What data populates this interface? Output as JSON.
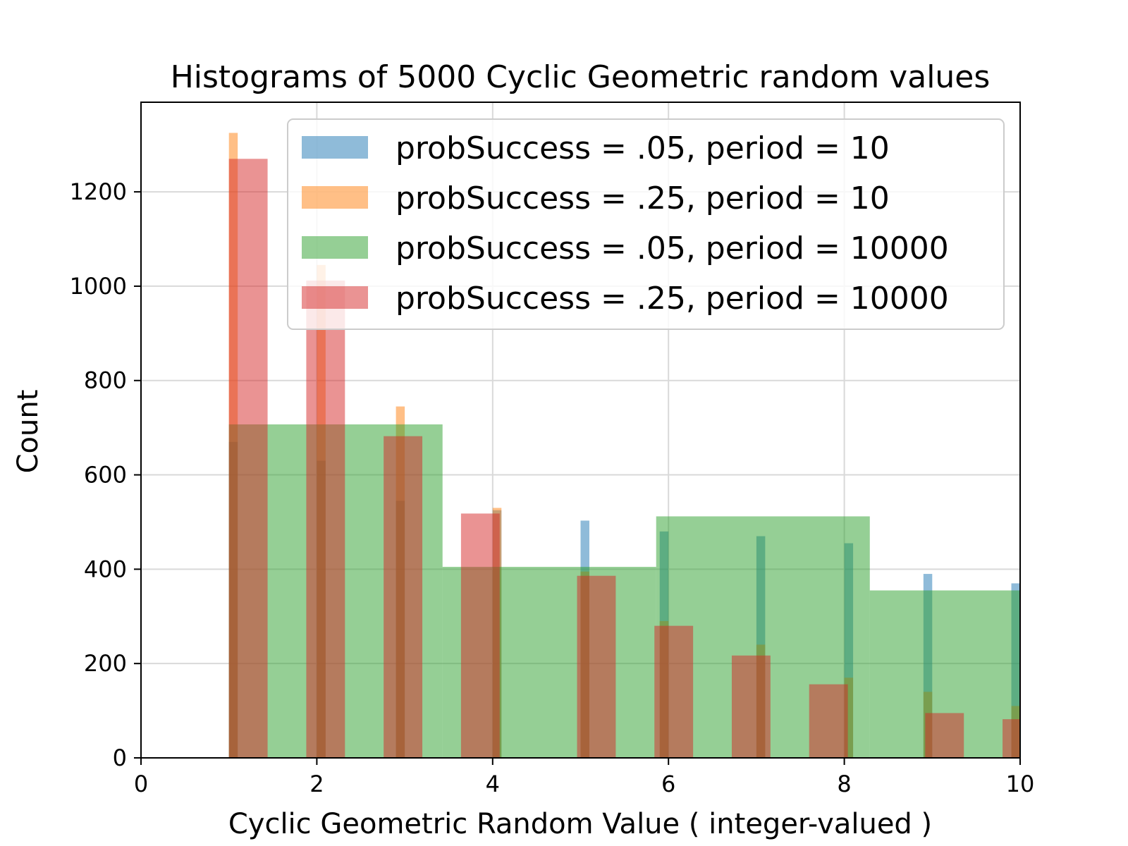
{
  "chart_data": {
    "type": "bar",
    "title": "Histograms of 5000 Cyclic Geometric random values",
    "xlabel": "Cyclic Geometric Random Value ( integer-valued )",
    "ylabel": "Count",
    "xlim": [
      0,
      10
    ],
    "ylim": [
      0,
      1390
    ],
    "xticks": [
      0,
      2,
      4,
      6,
      8,
      10
    ],
    "xtick_labels": [
      "0",
      "2",
      "4",
      "6",
      "8",
      "10"
    ],
    "yticks": [
      0,
      200,
      400,
      600,
      800,
      1000,
      1200
    ],
    "ytick_labels": [
      "0",
      "200",
      "400",
      "600",
      "800",
      "1000",
      "1200"
    ],
    "grid": true,
    "legend_position": "upper-right",
    "series": [
      {
        "name": "probSuccess = .05, period = 10",
        "color": "#1f77b4",
        "opacity": 0.5,
        "bars": [
          {
            "x0": 1.0,
            "x1": 1.1,
            "y": 670
          },
          {
            "x0": 2.0,
            "x1": 2.1,
            "y": 630
          },
          {
            "x0": 2.9,
            "x1": 3.0,
            "y": 545
          },
          {
            "x0": 4.0,
            "x1": 4.1,
            "y": 525
          },
          {
            "x0": 5.0,
            "x1": 5.1,
            "y": 503
          },
          {
            "x0": 5.9,
            "x1": 6.0,
            "y": 480
          },
          {
            "x0": 7.0,
            "x1": 7.1,
            "y": 470
          },
          {
            "x0": 8.0,
            "x1": 8.1,
            "y": 455
          },
          {
            "x0": 8.9,
            "x1": 9.0,
            "y": 390
          },
          {
            "x0": 9.9,
            "x1": 10.0,
            "y": 370
          }
        ]
      },
      {
        "name": "probSuccess = .25, period = 10",
        "color": "#ff7f0e",
        "opacity": 0.5,
        "bars": [
          {
            "x0": 1.0,
            "x1": 1.1,
            "y": 1325
          },
          {
            "x0": 2.0,
            "x1": 2.1,
            "y": 1045
          },
          {
            "x0": 2.9,
            "x1": 3.0,
            "y": 745
          },
          {
            "x0": 4.0,
            "x1": 4.1,
            "y": 530
          },
          {
            "x0": 5.0,
            "x1": 5.1,
            "y": 395
          },
          {
            "x0": 5.9,
            "x1": 6.0,
            "y": 290
          },
          {
            "x0": 7.0,
            "x1": 7.1,
            "y": 240
          },
          {
            "x0": 8.0,
            "x1": 8.1,
            "y": 170
          },
          {
            "x0": 8.9,
            "x1": 9.0,
            "y": 140
          },
          {
            "x0": 9.9,
            "x1": 10.0,
            "y": 110
          }
        ]
      },
      {
        "name": "probSuccess = .05, period = 10000",
        "color": "#2ca02c",
        "opacity": 0.5,
        "bars": [
          {
            "x0": 1.0,
            "x1": 3.43,
            "y": 707
          },
          {
            "x0": 3.43,
            "x1": 5.86,
            "y": 405
          },
          {
            "x0": 5.86,
            "x1": 8.29,
            "y": 512
          },
          {
            "x0": 8.29,
            "x1": 10.72,
            "y": 355
          }
        ]
      },
      {
        "name": "probSuccess = .25, period = 10000",
        "color": "#d62728",
        "opacity": 0.5,
        "bars": [
          {
            "x0": 1.0,
            "x1": 1.44,
            "y": 1270
          },
          {
            "x0": 1.88,
            "x1": 2.32,
            "y": 1012
          },
          {
            "x0": 2.76,
            "x1": 3.2,
            "y": 682
          },
          {
            "x0": 3.64,
            "x1": 4.08,
            "y": 518
          },
          {
            "x0": 4.96,
            "x1": 5.4,
            "y": 386
          },
          {
            "x0": 5.84,
            "x1": 6.28,
            "y": 280
          },
          {
            "x0": 6.72,
            "x1": 7.16,
            "y": 217
          },
          {
            "x0": 7.6,
            "x1": 8.04,
            "y": 156
          },
          {
            "x0": 8.92,
            "x1": 9.36,
            "y": 95
          },
          {
            "x0": 9.8,
            "x1": 10.24,
            "y": 82
          }
        ]
      }
    ]
  }
}
